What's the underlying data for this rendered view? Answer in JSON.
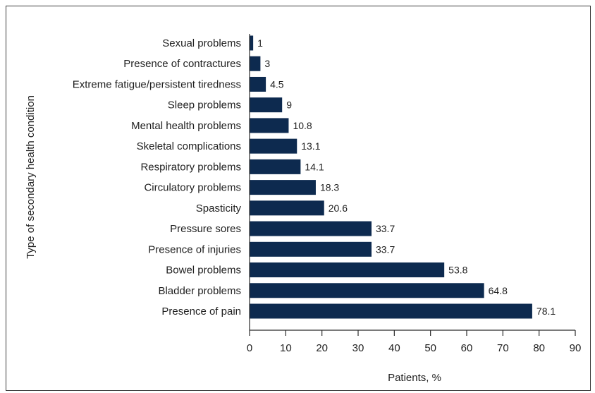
{
  "chart_data": {
    "type": "bar",
    "orientation": "horizontal",
    "categories": [
      "Sexual problems",
      "Presence of contractures",
      "Extreme fatigue/persistent tiredness",
      "Sleep problems",
      "Mental health problems",
      "Skeletal complications",
      "Respiratory problems",
      "Circulatory problems",
      "Spasticity",
      "Pressure sores",
      "Presence of injuries",
      "Bowel problems",
      "Bladder problems",
      "Presence of pain"
    ],
    "values": [
      1,
      3,
      4.5,
      9,
      10.8,
      13.1,
      14.1,
      18.3,
      20.6,
      33.7,
      33.7,
      53.8,
      64.8,
      78.1
    ],
    "data_labels": [
      "1",
      "3",
      "4.5",
      "9",
      "10.8",
      "13.1",
      "14.1",
      "18.3",
      "20.6",
      "33.7",
      "33.7",
      "53.8",
      "64.8",
      "78.1"
    ],
    "xlabel": "Patients, %",
    "ylabel": "Type of secondary health condition",
    "xlim": [
      0,
      90
    ],
    "xticks": [
      0,
      10,
      20,
      30,
      40,
      50,
      60,
      70,
      80,
      90
    ],
    "bar_color": "#0d2a4f",
    "grid": false,
    "legend": "none"
  }
}
